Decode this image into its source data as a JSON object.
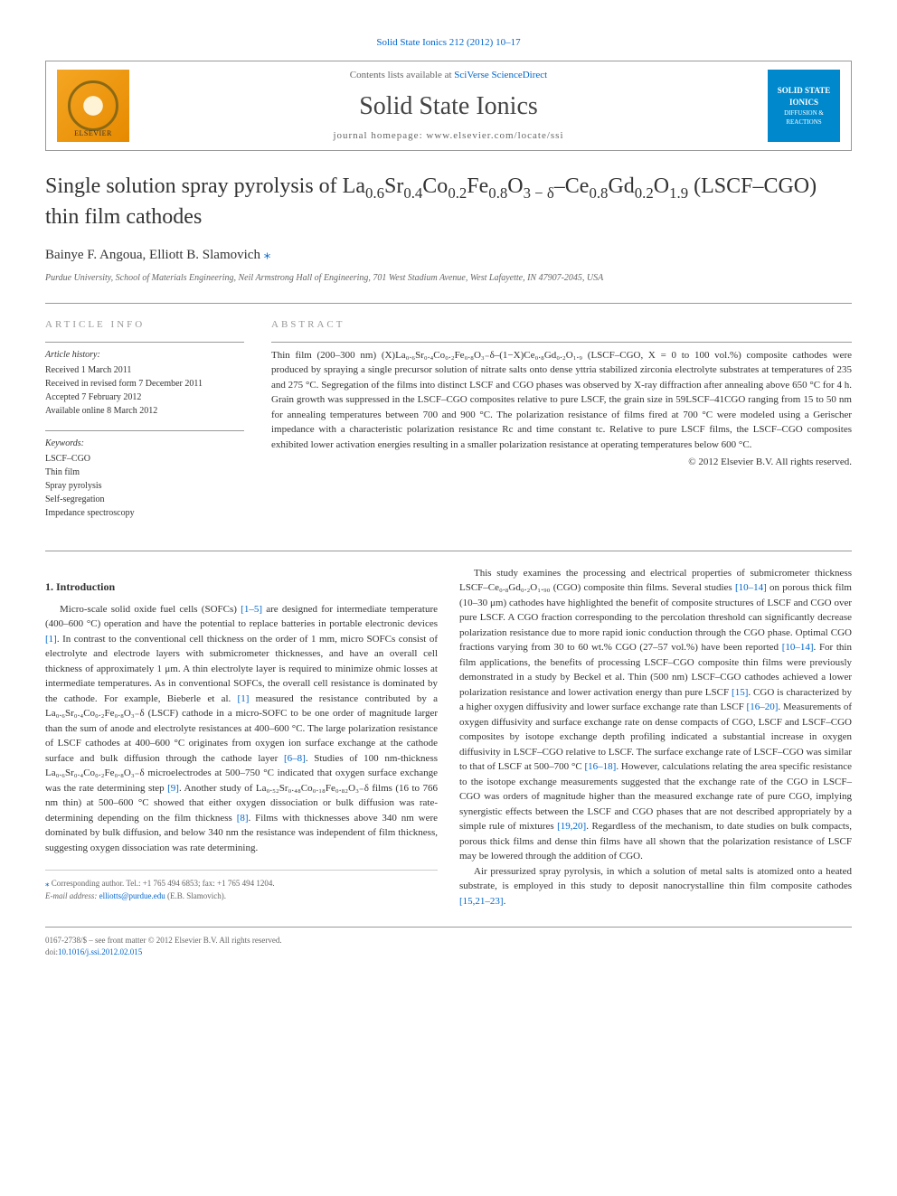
{
  "header": {
    "citation_prefix": "Solid State Ionics 212 (2012) 10–17",
    "contents_text": "Contents lists available at ",
    "contents_link": "SciVerse ScienceDirect",
    "journal_name": "Solid State Ionics",
    "homepage_label": "journal homepage: ",
    "homepage_url": "www.elsevier.com/locate/ssi",
    "publisher_logo_text": "ELSEVIER",
    "journal_logo_title": "SOLID STATE IONICS",
    "journal_logo_sub": "DIFFUSION & REACTIONS"
  },
  "title_parts": {
    "p1": "Single solution spray pyrolysis of La",
    "s1": "0.6",
    "p2": "Sr",
    "s2": "0.4",
    "p3": "Co",
    "s3": "0.2",
    "p4": "Fe",
    "s4": "0.8",
    "p5": "O",
    "s5": "3 − δ",
    "p6": "–Ce",
    "s6": "0.8",
    "p7": "Gd",
    "s7": "0.2",
    "p8": "O",
    "s8": "1.9",
    "p9": " (LSCF–CGO) thin film cathodes"
  },
  "authors": {
    "a1": "Bainye F. Angoua, ",
    "a2": "Elliott B. Slamovich ",
    "star": "⁎"
  },
  "affiliation": "Purdue University, School of Materials Engineering, Neil Armstrong Hall of Engineering, 701 West Stadium Avenue, West Lafayette, IN 47907-2045, USA",
  "article_info": {
    "heading": "article info",
    "history_label": "Article history:",
    "h1": "Received 1 March 2011",
    "h2": "Received in revised form 7 December 2011",
    "h3": "Accepted 7 February 2012",
    "h4": "Available online 8 March 2012",
    "keywords_label": "Keywords:",
    "k1": "LSCF–CGO",
    "k2": "Thin film",
    "k3": "Spray pyrolysis",
    "k4": "Self-segregation",
    "k5": "Impedance spectroscopy"
  },
  "abstract": {
    "heading": "abstract",
    "text": "Thin film (200–300 nm) (X)La₀.₆Sr₀.₄Co₀.₂Fe₀.₈O₃₋δ–(1−X)Ce₀.₈Gd₀.₂O₁.₉ (LSCF–CGO, X = 0 to 100 vol.%) composite cathodes were produced by spraying a single precursor solution of nitrate salts onto dense yttria stabilized zirconia electrolyte substrates at temperatures of 235 and 275 °C. Segregation of the films into distinct LSCF and CGO phases was observed by X-ray diffraction after annealing above 650 °C for 4 h. Grain growth was suppressed in the LSCF–CGO composites relative to pure LSCF, the grain size in 59LSCF–41CGO ranging from 15 to 50 nm for annealing temperatures between 700 and 900 °C. The polarization resistance of films fired at 700 °C were modeled using a Gerischer impedance with a characteristic polarization resistance Rc and time constant tc. Relative to pure LSCF films, the LSCF–CGO composites exhibited lower activation energies resulting in a smaller polarization resistance at operating temperatures below 600 °C.",
    "copyright": "© 2012 Elsevier B.V. All rights reserved."
  },
  "body": {
    "intro_h": "1. Introduction",
    "p1a": "Micro-scale solid oxide fuel cells (SOFCs) ",
    "r1": "[1–5]",
    "p1b": " are designed for intermediate temperature (400–600 °C) operation and have the potential to replace batteries in portable electronic devices ",
    "r2": "[1]",
    "p1c": ". In contrast to the conventional cell thickness on the order of 1 mm, micro SOFCs consist of electrolyte and electrode layers with submicrometer thicknesses, and have an overall cell thickness of approximately 1 μm. A thin electrolyte layer is required to minimize ohmic losses at intermediate temperatures. As in conventional SOFCs, the overall cell resistance is dominated by the cathode. For example, Bieberle et al. ",
    "r3": "[1]",
    "p1d": " measured the resistance contributed by a La₀.₆Sr₀.₄Co₀.₂Fe₀.₈O₃₋δ (LSCF) cathode in a micro-SOFC to be one order of magnitude larger than the sum of anode and electrolyte resistances at 400–600 °C. The large polarization resistance of LSCF cathodes at 400–600 °C originates from oxygen ion surface exchange at the cathode surface and bulk diffusion through the cathode layer ",
    "r4": "[6–8]",
    "p1e": ". Studies of 100 nm-thickness La₀.₆Sr₀.₄Co₀.₂Fe₀.₈O₃₋δ microelectrodes at 500–750 °C indicated that oxygen surface exchange was the rate determining step ",
    "r5": "[9]",
    "p1f": ". Another study of La₀.₅₂Sr₀.₄₈Co₀.₁₈Fe₀.₈₂O₃₋δ films (16 to 766 nm thin) at 500–600 °C showed that either oxygen dissociation or bulk diffusion was rate-determining depending on the film thickness ",
    "r6": "[8]",
    "p1g": ". Films with thicknesses above 340 nm were dominated by bulk diffusion, and below 340 nm the resistance was independent of film thickness, suggesting oxygen dissociation was rate determining.",
    "p2a": "This study examines the processing and electrical properties of submicrometer thickness LSCF–Ce₀.₈Gd₀.₂O₁.₉₀ (CGO) composite thin films. Several studies ",
    "r7": "[10–14]",
    "p2b": " on porous thick film (10–30 μm) cathodes have highlighted the benefit of composite structures of LSCF and CGO over pure LSCF. A CGO fraction corresponding to the percolation threshold can significantly decrease polarization resistance due to more rapid ionic conduction through the CGO phase. Optimal CGO fractions varying from 30 to 60 wt.% CGO (27–57 vol.%) have been reported ",
    "r8": "[10–14]",
    "p2c": ". For thin film applications, the benefits of processing LSCF–CGO composite thin films were previously demonstrated in a study by Beckel et al. Thin (500 nm) LSCF–CGO cathodes achieved a lower polarization resistance and lower activation energy than pure LSCF ",
    "r9": "[15]",
    "p2d": ". CGO is characterized by a higher oxygen diffusivity and lower surface exchange rate than LSCF ",
    "r10": "[16–20]",
    "p2e": ". Measurements of oxygen diffusivity and surface exchange rate on dense compacts of CGO, LSCF and LSCF–CGO composites by isotope exchange depth profiling indicated a substantial increase in oxygen diffusivity in LSCF–CGO relative to LSCF. The surface exchange rate of LSCF–CGO was similar to that of LSCF at 500–700 °C ",
    "r11": "[16–18]",
    "p2f": ". However, calculations relating the area specific resistance to the isotope exchange measurements suggested that the exchange rate of the CGO in LSCF–CGO was orders of magnitude higher than the measured exchange rate of pure CGO, implying synergistic effects between the LSCF and CGO phases that are not described appropriately by a simple rule of mixtures ",
    "r12": "[19,20]",
    "p2g": ". Regardless of the mechanism, to date studies on bulk compacts, porous thick films and dense thin films have all shown that the polarization resistance of LSCF may be lowered through the addition of CGO.",
    "p3a": "Air pressurized spray pyrolysis, in which a solution of metal salts is atomized onto a heated substrate, is employed in this study to deposit nanocrystalline thin film composite cathodes ",
    "r13": "[15,21–23]",
    "p3b": "."
  },
  "corresponding": {
    "star": "⁎",
    "text": " Corresponding author. Tel.: +1 765 494 6853; fax: +1 765 494 1204.",
    "email_label": "E-mail address: ",
    "email": "elliotts@purdue.edu",
    "email_suffix": " (E.B. Slamovich)."
  },
  "footer": {
    "line1": "0167-2738/$ – see front matter © 2012 Elsevier B.V. All rights reserved.",
    "doi_label": "doi:",
    "doi": "10.1016/j.ssi.2012.02.015"
  }
}
